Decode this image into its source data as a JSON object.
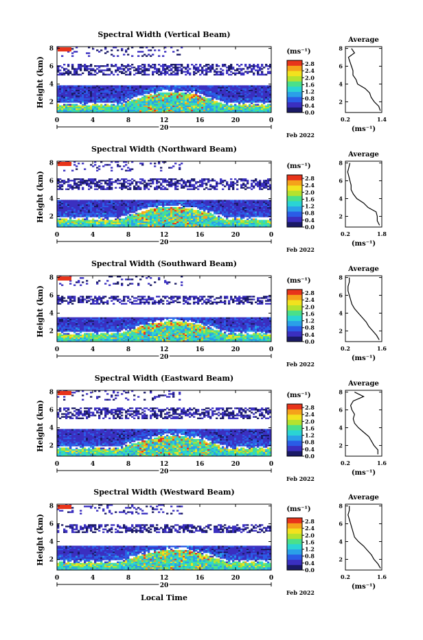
{
  "chart_data": {
    "type": "heatmap",
    "x_label": "Local Time",
    "date_label": "Feb 2022",
    "day_label": "20",
    "x_ticks": [
      "0",
      "4",
      "8",
      "12",
      "16",
      "20",
      "0"
    ],
    "x_range": [
      0,
      24
    ],
    "y_label": "Height (km)",
    "y_ticks": [
      "2",
      "4",
      "6",
      "8"
    ],
    "y_range": [
      0.8,
      8.2
    ],
    "colorbar": {
      "unit": "(ms⁻¹)",
      "ticks": [
        "0.0",
        "0.4",
        "0.8",
        "1.2",
        "1.6",
        "2.0",
        "2.4",
        "2.8"
      ],
      "range": [
        0,
        3.0
      ],
      "colors": [
        "#1a1a66",
        "#3a2fc0",
        "#2a5ce6",
        "#2aa0e8",
        "#2ad4d4",
        "#4ae08a",
        "#b4e22e",
        "#f2e21e",
        "#f5a21a",
        "#e8341a"
      ]
    },
    "average_title": "Average",
    "average_unit": "(ms⁻¹)",
    "average_y_ticks": [
      "2",
      "4",
      "6",
      "8"
    ],
    "panels": [
      {
        "title": "Spectral Width (Vertical Beam)",
        "echo_top_km": 3.8,
        "upper_layer_km": [
          5.0,
          6.2
        ],
        "avg_x_ticks": [
          "0.2",
          "1.4"
        ],
        "avg_x_range": [
          0.2,
          1.4
        ],
        "average_profile": {
          "height_km": [
            1.0,
            1.5,
            2.0,
            2.5,
            3.0,
            3.5,
            4.0,
            4.5,
            5.0,
            5.5,
            6.0,
            6.5,
            7.0,
            7.5,
            8.0
          ],
          "width_ms": [
            1.35,
            1.3,
            1.15,
            1.05,
            1.0,
            0.85,
            0.6,
            0.55,
            0.45,
            0.45,
            0.4,
            0.35,
            0.3,
            0.5,
            0.4
          ]
        }
      },
      {
        "title": "Spectral Width (Northward Beam)",
        "echo_top_km": 3.8,
        "upper_layer_km": [
          5.0,
          6.2
        ],
        "avg_x_ticks": [
          "0.2",
          "1.8"
        ],
        "avg_x_range": [
          0.2,
          1.8
        ],
        "average_profile": {
          "height_km": [
            1.0,
            1.5,
            2.0,
            2.5,
            3.0,
            3.5,
            4.0,
            4.5,
            5.0,
            5.5,
            6.0,
            6.5,
            7.0,
            7.5,
            8.0
          ],
          "width_ms": [
            1.7,
            1.6,
            1.6,
            1.55,
            1.2,
            1.0,
            0.7,
            0.55,
            0.45,
            0.45,
            0.4,
            0.35,
            0.3,
            0.35,
            0.4
          ]
        }
      },
      {
        "title": "Spectral Width (Southward Beam)",
        "echo_top_km": 3.6,
        "upper_layer_km": [
          5.0,
          6.0
        ],
        "avg_x_ticks": [
          "0.2",
          "1.6"
        ],
        "avg_x_range": [
          0.2,
          1.6
        ],
        "average_profile": {
          "height_km": [
            1.0,
            1.5,
            2.0,
            2.5,
            3.0,
            3.5,
            4.0,
            4.5,
            5.0,
            5.5,
            6.0,
            6.5,
            7.0,
            7.5,
            8.0
          ],
          "width_ms": [
            1.5,
            1.4,
            1.25,
            1.1,
            1.0,
            0.85,
            0.7,
            0.55,
            0.45,
            0.4,
            0.35,
            0.3,
            0.3,
            0.35,
            0.35
          ]
        }
      },
      {
        "title": "Spectral Width (Eastward Beam)",
        "echo_top_km": 3.8,
        "upper_layer_km": [
          5.0,
          6.2
        ],
        "avg_x_ticks": [
          "0.2",
          "1.6"
        ],
        "avg_x_range": [
          0.2,
          1.6
        ],
        "average_profile": {
          "height_km": [
            1.0,
            1.5,
            2.0,
            2.5,
            3.0,
            3.5,
            4.0,
            4.5,
            5.0,
            5.5,
            6.0,
            6.5,
            7.0,
            7.5,
            8.0
          ],
          "width_ms": [
            1.45,
            1.45,
            1.3,
            1.2,
            1.1,
            0.9,
            0.7,
            0.55,
            0.5,
            0.55,
            0.45,
            0.4,
            0.5,
            0.9,
            0.55
          ]
        }
      },
      {
        "title": "Spectral Width (Westward Beam)",
        "echo_top_km": 3.6,
        "upper_layer_km": [
          5.0,
          6.0
        ],
        "avg_x_ticks": [
          "0.2",
          "1.6"
        ],
        "avg_x_range": [
          0.2,
          1.6
        ],
        "average_profile": {
          "height_km": [
            1.0,
            1.5,
            2.0,
            2.5,
            3.0,
            3.5,
            4.0,
            4.5,
            5.0,
            5.5,
            6.0,
            6.5,
            7.0,
            7.5,
            8.0
          ],
          "width_ms": [
            1.55,
            1.45,
            1.3,
            1.2,
            1.05,
            0.9,
            0.7,
            0.55,
            0.5,
            0.45,
            0.4,
            0.35,
            0.3,
            0.35,
            0.35
          ]
        }
      }
    ]
  }
}
